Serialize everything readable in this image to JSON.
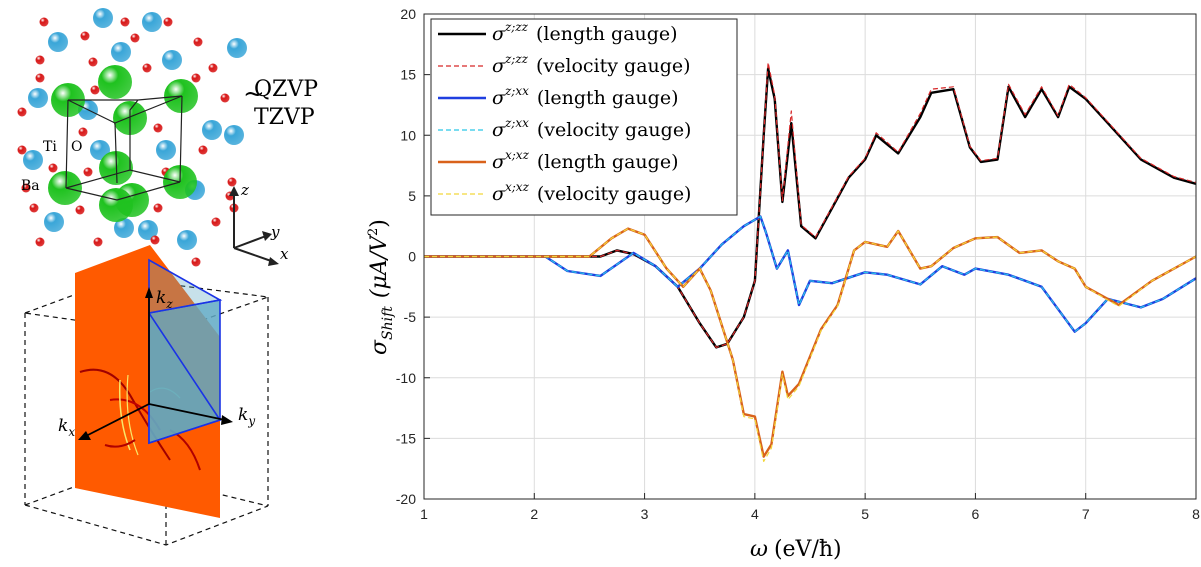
{
  "crystal": {
    "atom_labels": {
      "ti": "Ti",
      "o": "O",
      "ba": "Ba"
    },
    "basis_tilde": "~",
    "basis_top": "QZVP",
    "basis_bottom": "TZVP",
    "axes": {
      "z": "z",
      "y": "y",
      "x": "x"
    },
    "colors": {
      "ba": "#3aa6d8",
      "ti": "#1fc21f",
      "o": "#d81818"
    }
  },
  "bz": {
    "kz": "k",
    "kz_sub": "z",
    "ky": "k",
    "ky_sub": "y",
    "kx": "k",
    "kx_sub": "x",
    "colors": {
      "plane": "#ff5a00",
      "wedge": "#5fa9c4",
      "edge": "#1a33e6"
    }
  },
  "chart_data": {
    "type": "line",
    "xlabel_symbol": "ω",
    "xlabel_units": "(eV/ħ)",
    "ylabel_symbol": "σ",
    "ylabel_sub": "Shift",
    "ylabel_units": "(μA/V",
    "ylabel_sup": "2",
    "ylabel_close": ")",
    "xlim": [
      1,
      8
    ],
    "ylim": [
      -20,
      20
    ],
    "xticks": [
      1,
      2,
      3,
      4,
      5,
      6,
      7,
      8
    ],
    "yticks": [
      -20,
      -15,
      -10,
      -5,
      0,
      5,
      10,
      15,
      20
    ],
    "grid": true,
    "legend_position": "top-left",
    "series": [
      {
        "name": "σ^{z;zz} (length gauge)",
        "sym": "σ",
        "sup": "z;zz",
        "gauge": "(length gauge)",
        "color": "#000000",
        "dashed": false,
        "x": [
          1.0,
          2.6,
          2.75,
          2.9,
          3.1,
          3.3,
          3.5,
          3.65,
          3.75,
          3.9,
          4.0,
          4.08,
          4.12,
          4.18,
          4.25,
          4.33,
          4.42,
          4.55,
          4.7,
          4.85,
          5.0,
          5.1,
          5.3,
          5.5,
          5.6,
          5.8,
          5.95,
          6.05,
          6.2,
          6.3,
          6.45,
          6.6,
          6.75,
          6.85,
          7.0,
          7.2,
          7.5,
          7.8,
          8.0
        ],
        "y": [
          0,
          0,
          0.5,
          0.2,
          -0.8,
          -2.5,
          -5.5,
          -7.5,
          -7.2,
          -5.0,
          -2.0,
          10,
          15.5,
          13,
          4.5,
          11,
          2.5,
          1.5,
          4,
          6.5,
          8,
          10,
          8.5,
          11.5,
          13.5,
          13.8,
          9,
          7.8,
          8,
          14,
          11.5,
          13.8,
          11.5,
          14,
          13,
          11,
          8,
          6.5,
          6
        ]
      },
      {
        "name": "σ^{z;zz} (velocity gauge)",
        "sym": "σ",
        "sup": "z;zz",
        "gauge": "(velocity gauge)",
        "color": "#d62728",
        "dashed": true,
        "x": [
          1.0,
          2.6,
          2.75,
          2.9,
          3.1,
          3.3,
          3.5,
          3.65,
          3.75,
          3.9,
          4.0,
          4.08,
          4.12,
          4.18,
          4.25,
          4.33,
          4.42,
          4.55,
          4.7,
          4.85,
          5.0,
          5.1,
          5.3,
          5.5,
          5.6,
          5.8,
          5.95,
          6.05,
          6.2,
          6.3,
          6.45,
          6.6,
          6.75,
          6.85,
          7.0,
          7.2,
          7.5,
          7.8,
          8.0
        ],
        "y": [
          0,
          0,
          0.5,
          0.2,
          -0.8,
          -2.5,
          -5.5,
          -7.5,
          -7.2,
          -5.0,
          -2.0,
          10,
          16,
          13.3,
          4.6,
          12,
          2.6,
          1.6,
          4.1,
          6.6,
          8.1,
          10.2,
          8.6,
          11.8,
          13.8,
          14,
          9.1,
          7.9,
          8.1,
          14.2,
          11.7,
          14,
          11.6,
          14.2,
          13.1,
          11.1,
          8.1,
          6.6,
          6.1
        ]
      },
      {
        "name": "σ^{z;xx} (length gauge)",
        "sym": "σ",
        "sup": "z;xx",
        "gauge": "(length gauge)",
        "color": "#1f3fe0",
        "dashed": false,
        "x": [
          1.0,
          2.1,
          2.3,
          2.6,
          2.9,
          3.1,
          3.3,
          3.5,
          3.7,
          3.9,
          4.05,
          4.1,
          4.2,
          4.3,
          4.4,
          4.5,
          4.7,
          5.0,
          5.2,
          5.5,
          5.7,
          5.9,
          6.0,
          6.3,
          6.6,
          6.9,
          7.0,
          7.2,
          7.5,
          7.7,
          8.0
        ],
        "y": [
          0,
          0,
          -1.2,
          -1.6,
          0.3,
          -0.8,
          -2.5,
          -1.0,
          1.0,
          2.5,
          3.3,
          2.0,
          -1.0,
          0.5,
          -4.0,
          -2.0,
          -2.2,
          -1.3,
          -1.5,
          -2.3,
          -0.8,
          -1.5,
          -1.0,
          -1.5,
          -2.5,
          -6.2,
          -5.5,
          -3.5,
          -4.2,
          -3.5,
          -1.8
        ]
      },
      {
        "name": "σ^{z;xx} (velocity gauge)",
        "sym": "σ",
        "sup": "z;xx",
        "gauge": "(velocity gauge)",
        "color": "#29c6e8",
        "dashed": true,
        "x": [
          1.0,
          2.1,
          2.3,
          2.6,
          2.9,
          3.1,
          3.3,
          3.5,
          3.7,
          3.9,
          4.05,
          4.1,
          4.2,
          4.3,
          4.4,
          4.5,
          4.7,
          5.0,
          5.2,
          5.5,
          5.7,
          5.9,
          6.0,
          6.3,
          6.6,
          6.9,
          7.0,
          7.2,
          7.5,
          7.7,
          8.0
        ],
        "y": [
          0,
          0,
          -1.2,
          -1.6,
          0.3,
          -0.8,
          -2.5,
          -1.0,
          1.0,
          2.5,
          3.3,
          2.0,
          -1.0,
          0.5,
          -4.0,
          -2.0,
          -2.2,
          -1.3,
          -1.5,
          -2.3,
          -0.8,
          -1.5,
          -1.0,
          -1.5,
          -2.5,
          -6.2,
          -5.5,
          -3.5,
          -4.2,
          -3.5,
          -1.8
        ]
      },
      {
        "name": "σ^{x;xz} (length gauge)",
        "sym": "σ",
        "sup": "x;xz",
        "gauge": "(length gauge)",
        "color": "#d9621b",
        "dashed": false,
        "x": [
          1.0,
          2.5,
          2.7,
          2.85,
          3.0,
          3.2,
          3.35,
          3.5,
          3.6,
          3.8,
          3.9,
          4.0,
          4.08,
          4.15,
          4.25,
          4.3,
          4.4,
          4.6,
          4.75,
          4.9,
          5.0,
          5.2,
          5.3,
          5.5,
          5.6,
          5.8,
          6.0,
          6.2,
          6.4,
          6.6,
          6.75,
          6.9,
          7.0,
          7.2,
          7.3,
          7.6,
          8.0
        ],
        "y": [
          0,
          0,
          1.5,
          2.3,
          1.8,
          -1.0,
          -2.5,
          -1.0,
          -2.8,
          -8.5,
          -13,
          -13.2,
          -16.5,
          -15.5,
          -9.5,
          -11.5,
          -10.5,
          -6.0,
          -4.0,
          0.5,
          1.2,
          0.8,
          2.1,
          -1.0,
          -0.8,
          0.7,
          1.5,
          1.6,
          0.3,
          0.5,
          -0.4,
          -1.0,
          -2.5,
          -3.5,
          -4.0,
          -2.0,
          0
        ]
      },
      {
        "name": "σ^{x;xz} (velocity gauge)",
        "sym": "σ",
        "sup": "x;xz",
        "gauge": "(velocity gauge)",
        "color": "#f2d63a",
        "dashed": true,
        "x": [
          1.0,
          2.5,
          2.7,
          2.85,
          3.0,
          3.2,
          3.35,
          3.5,
          3.6,
          3.8,
          3.9,
          4.0,
          4.08,
          4.15,
          4.25,
          4.3,
          4.4,
          4.6,
          4.75,
          4.9,
          5.0,
          5.2,
          5.3,
          5.5,
          5.6,
          5.8,
          6.0,
          6.2,
          6.4,
          6.6,
          6.75,
          6.9,
          7.0,
          7.2,
          7.3,
          7.6,
          8.0
        ],
        "y": [
          0,
          0,
          1.5,
          2.3,
          1.8,
          -1.0,
          -2.5,
          -1.0,
          -2.8,
          -8.5,
          -13.2,
          -13.4,
          -16.9,
          -15.8,
          -9.7,
          -11.8,
          -10.7,
          -6.1,
          -4.1,
          0.5,
          1.2,
          0.8,
          2.1,
          -1.0,
          -0.8,
          0.7,
          1.5,
          1.6,
          0.3,
          0.5,
          -0.4,
          -1.0,
          -2.5,
          -3.6,
          -4.1,
          -2.0,
          0
        ]
      }
    ]
  }
}
